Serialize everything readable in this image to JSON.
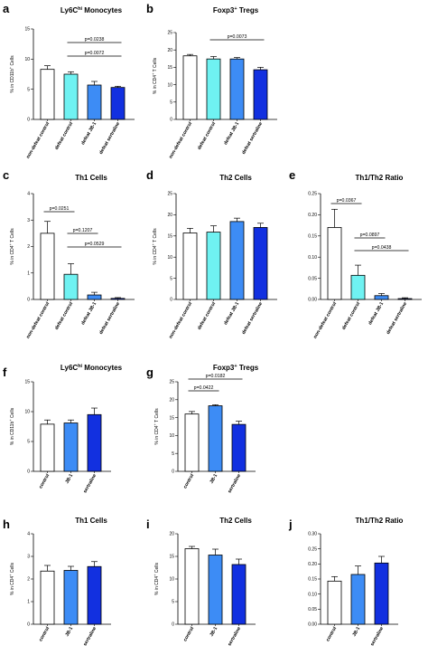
{
  "colors": {
    "white": "#ffffff",
    "cyan": "#6ff2f2",
    "mid_blue": "#3d8cf5",
    "dark_blue": "#1230e0",
    "axis": "#000000"
  },
  "chart_data": [
    {
      "label": "a",
      "type": "bar",
      "title": "Ly6C",
      "title_sup": "hi",
      "title_rest": " Monocytes",
      "ylabel": "% in CD11b",
      "ylabel_sup": "+",
      "ylabel_rest": " Cells",
      "ylim": [
        0,
        15
      ],
      "yticks": [
        0,
        5,
        10,
        15
      ],
      "tick_labels": [
        "0",
        "5",
        "10",
        "15"
      ],
      "categories": [
        "non-defeat control",
        "defeat control",
        "defeat JB-1",
        "defeat sertraline"
      ],
      "fills": [
        "white",
        "cyan",
        "mid_blue",
        "dark_blue"
      ],
      "values": [
        8.3,
        7.5,
        5.7,
        5.3
      ],
      "errors": [
        0.6,
        0.4,
        0.6,
        0.2
      ],
      "pvalues": [
        {
          "text": "p=0.0238",
          "from": 1,
          "to": 3
        },
        {
          "text": "p=0.0072",
          "from": 1,
          "to": 3
        }
      ]
    },
    {
      "label": "b",
      "type": "bar",
      "title": "Foxp3",
      "title_sup": "+",
      "title_rest": " Tregs",
      "ylabel": "% in CD4",
      "ylabel_sup": "+",
      "ylabel_rest": " T Cells",
      "ylim": [
        0,
        25
      ],
      "yticks": [
        0,
        5,
        10,
        15,
        20,
        25
      ],
      "tick_labels": [
        "0",
        "5",
        "10",
        "15",
        "20",
        "25"
      ],
      "categories": [
        "non-defeat control",
        "defeat control",
        "defeat JB-1",
        "defeat sertraline"
      ],
      "fills": [
        "white",
        "cyan",
        "mid_blue",
        "dark_blue"
      ],
      "values": [
        18.3,
        17.4,
        17.4,
        14.3
      ],
      "errors": [
        0.4,
        0.7,
        0.4,
        0.7
      ],
      "pvalues": [
        {
          "text": "p=0.0073",
          "from": 1,
          "to": 3
        }
      ]
    },
    {
      "label": "c",
      "type": "bar",
      "title": "Th1 Cells",
      "title_sup": "",
      "title_rest": "",
      "ylabel": "% in CD4",
      "ylabel_sup": "+",
      "ylabel_rest": " T Cells",
      "ylim": [
        0,
        4
      ],
      "yticks": [
        0,
        1,
        2,
        3,
        4
      ],
      "tick_labels": [
        "0",
        "1",
        "2",
        "3",
        "4"
      ],
      "categories": [
        "non-defeat control",
        "defeat control",
        "defeat JB-1",
        "defeat sertraline"
      ],
      "fills": [
        "white",
        "cyan",
        "mid_blue",
        "dark_blue"
      ],
      "values": [
        2.5,
        0.95,
        0.17,
        0.04
      ],
      "errors": [
        0.45,
        0.4,
        0.1,
        0.03
      ],
      "pvalues": [
        {
          "text": "p=0.0251",
          "from": 0,
          "to": 1
        },
        {
          "text": "p=0.1207",
          "from": 1,
          "to": 2
        },
        {
          "text": "p=0.0529",
          "from": 1,
          "to": 3
        }
      ]
    },
    {
      "label": "d",
      "type": "bar",
      "title": "Th2 Cells",
      "title_sup": "",
      "title_rest": "",
      "ylabel": "% in CD4",
      "ylabel_sup": "+",
      "ylabel_rest": " T Cells",
      "ylim": [
        0,
        25
      ],
      "yticks": [
        0,
        5,
        10,
        15,
        20,
        25
      ],
      "tick_labels": [
        "0",
        "5",
        "10",
        "15",
        "20",
        "25"
      ],
      "categories": [
        "non-defeat control",
        "defeat control",
        "defeat JB-1",
        "defeat sertraline"
      ],
      "fills": [
        "white",
        "cyan",
        "mid_blue",
        "dark_blue"
      ],
      "values": [
        15.7,
        15.9,
        18.4,
        17.0
      ],
      "errors": [
        1.1,
        1.5,
        0.8,
        1.0
      ],
      "pvalues": []
    },
    {
      "label": "e",
      "type": "bar",
      "title": "Th1/Th2 Ratio",
      "title_sup": "",
      "title_rest": "",
      "ylabel": "",
      "ylabel_sup": "",
      "ylabel_rest": "",
      "ylim": [
        0,
        0.25
      ],
      "yticks": [
        0,
        0.05,
        0.1,
        0.15,
        0.2,
        0.25
      ],
      "tick_labels": [
        "0.00",
        "0.05",
        "0.10",
        "0.15",
        "0.20",
        "0.25"
      ],
      "categories": [
        "non-defeat control",
        "defeat control",
        "defeat JB-1",
        "defeat sertraline"
      ],
      "fills": [
        "white",
        "cyan",
        "mid_blue",
        "dark_blue"
      ],
      "values": [
        0.17,
        0.057,
        0.009,
        0.002
      ],
      "errors": [
        0.043,
        0.024,
        0.005,
        0.002
      ],
      "pvalues": [
        {
          "text": "p=0.0367",
          "from": 0,
          "to": 1
        },
        {
          "text": "p=0.0897",
          "from": 1,
          "to": 2
        },
        {
          "text": "p=0.0438",
          "from": 1,
          "to": 3
        }
      ]
    },
    {
      "label": "f",
      "type": "bar",
      "title": "Ly6C",
      "title_sup": "hi",
      "title_rest": " Monocytes",
      "ylabel": "% in CD11b",
      "ylabel_sup": "+",
      "ylabel_rest": " Cells",
      "ylim": [
        0,
        15
      ],
      "yticks": [
        0,
        5,
        10,
        15
      ],
      "tick_labels": [
        "0",
        "5",
        "10",
        "15"
      ],
      "categories": [
        "control",
        "JB-1",
        "sertraline"
      ],
      "fills": [
        "white",
        "mid_blue",
        "dark_blue"
      ],
      "values": [
        7.9,
        8.1,
        9.5
      ],
      "errors": [
        0.7,
        0.5,
        1.1
      ],
      "pvalues": []
    },
    {
      "label": "g",
      "type": "bar",
      "title": "Foxp3",
      "title_sup": "+",
      "title_rest": " Tregs",
      "ylabel": "% in CD4",
      "ylabel_sup": "+",
      "ylabel_rest": " T Cells",
      "ylim": [
        0,
        25
      ],
      "yticks": [
        0,
        5,
        10,
        15,
        20,
        25
      ],
      "tick_labels": [
        "0",
        "5",
        "10",
        "15",
        "20",
        "25"
      ],
      "categories": [
        "control",
        "JB-1",
        "sertraline"
      ],
      "fills": [
        "white",
        "mid_blue",
        "dark_blue"
      ],
      "values": [
        16.0,
        18.3,
        13.1
      ],
      "errors": [
        0.7,
        0.3,
        0.9
      ],
      "pvalues": [
        {
          "text": "p=0.0422",
          "from": 0,
          "to": 1
        },
        {
          "text": "p=0.0182",
          "from": 0,
          "to": 2
        }
      ]
    },
    {
      "label": "h",
      "type": "bar",
      "title": "Th1 Cells",
      "title_sup": "",
      "title_rest": "",
      "ylabel": "% in CD4",
      "ylabel_sup": "+",
      "ylabel_rest": " Cells",
      "ylim": [
        0,
        4
      ],
      "yticks": [
        0,
        1,
        2,
        3,
        4
      ],
      "tick_labels": [
        "0",
        "1",
        "2",
        "3",
        "4"
      ],
      "categories": [
        "control",
        "JB-1",
        "sertraline"
      ],
      "fills": [
        "white",
        "mid_blue",
        "dark_blue"
      ],
      "values": [
        2.35,
        2.38,
        2.55
      ],
      "errors": [
        0.25,
        0.18,
        0.22
      ],
      "pvalues": []
    },
    {
      "label": "i",
      "type": "bar",
      "title": "Th2 Cells",
      "title_sup": "",
      "title_rest": "",
      "ylabel": "% in CD4",
      "ylabel_sup": "+",
      "ylabel_rest": " Cells",
      "ylim": [
        0,
        20
      ],
      "yticks": [
        0,
        5,
        10,
        15,
        20
      ],
      "tick_labels": [
        "0",
        "5",
        "10",
        "15",
        "20"
      ],
      "categories": [
        "control",
        "JB-1",
        "sertraline"
      ],
      "fills": [
        "white",
        "mid_blue",
        "dark_blue"
      ],
      "values": [
        16.7,
        15.3,
        13.2
      ],
      "errors": [
        0.5,
        1.3,
        1.2
      ],
      "pvalues": []
    },
    {
      "label": "j",
      "type": "bar",
      "title": "Th1/Th2 Ratio",
      "title_sup": "",
      "title_rest": "",
      "ylabel": "",
      "ylabel_sup": "",
      "ylabel_rest": "",
      "ylim": [
        0,
        0.3
      ],
      "yticks": [
        0,
        0.05,
        0.1,
        0.15,
        0.2,
        0.25,
        0.3
      ],
      "tick_labels": [
        "0.00",
        "0.05",
        "0.10",
        "0.15",
        "0.20",
        "0.25",
        "0.30"
      ],
      "categories": [
        "control",
        "JB-1",
        "sertraline"
      ],
      "fills": [
        "white",
        "mid_blue",
        "dark_blue"
      ],
      "values": [
        0.143,
        0.165,
        0.203
      ],
      "errors": [
        0.015,
        0.028,
        0.022
      ],
      "pvalues": []
    }
  ]
}
